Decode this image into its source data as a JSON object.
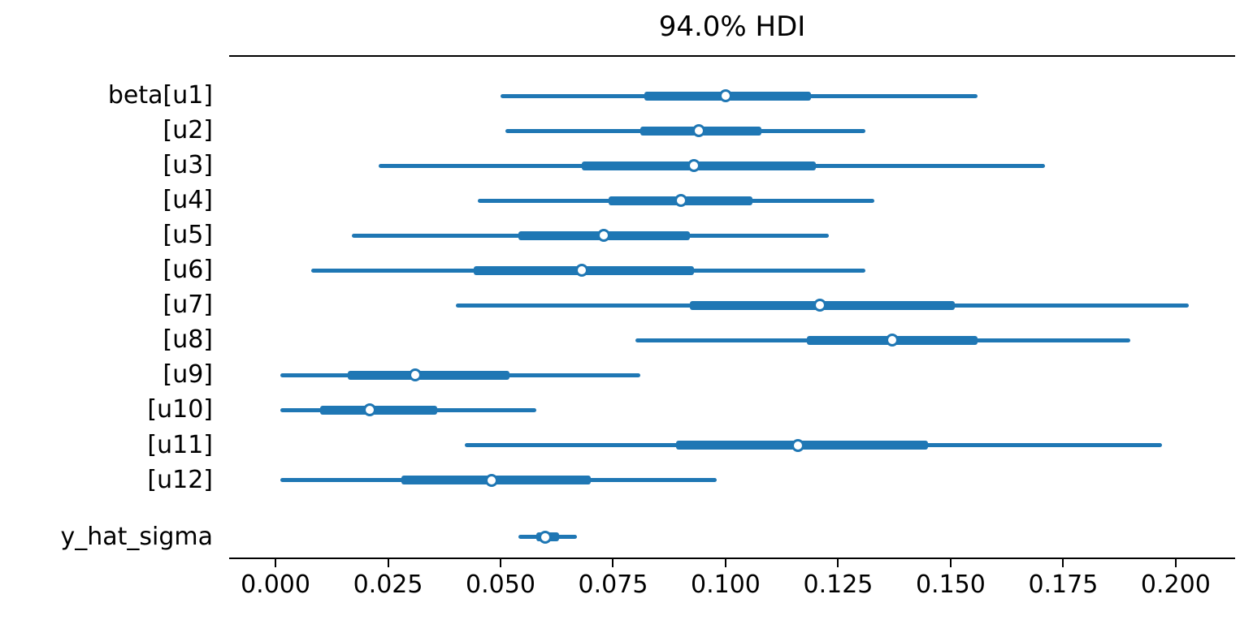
{
  "accent_color": "#1f77b4",
  "axis_color": "#000000",
  "chart_data": {
    "type": "forest",
    "title": "94.0% HDI",
    "hdi_probability": "94.0%",
    "xlim": [
      -0.0103,
      0.2132
    ],
    "x_ticks": [
      0.0,
      0.025,
      0.05,
      0.075,
      0.1,
      0.125,
      0.15,
      0.175,
      0.2
    ],
    "x_tick_labels": [
      "0.000",
      "0.025",
      "0.050",
      "0.075",
      "0.100",
      "0.125",
      "0.150",
      "0.175",
      "0.200"
    ],
    "grid": false,
    "legend": false,
    "rows": [
      {
        "label": "beta[u1]",
        "hdi": [
          0.05,
          0.156
        ],
        "quartile": [
          0.082,
          0.119
        ],
        "median": 0.1,
        "gap_before": false
      },
      {
        "label": "[u2]",
        "hdi": [
          0.051,
          0.131
        ],
        "quartile": [
          0.081,
          0.108
        ],
        "median": 0.094,
        "gap_before": false
      },
      {
        "label": "[u3]",
        "hdi": [
          0.023,
          0.171
        ],
        "quartile": [
          0.068,
          0.12
        ],
        "median": 0.093,
        "gap_before": false
      },
      {
        "label": "[u4]",
        "hdi": [
          0.045,
          0.133
        ],
        "quartile": [
          0.074,
          0.106
        ],
        "median": 0.09,
        "gap_before": false
      },
      {
        "label": "[u5]",
        "hdi": [
          0.017,
          0.123
        ],
        "quartile": [
          0.054,
          0.092
        ],
        "median": 0.073,
        "gap_before": false
      },
      {
        "label": "[u6]",
        "hdi": [
          0.008,
          0.131
        ],
        "quartile": [
          0.044,
          0.093
        ],
        "median": 0.068,
        "gap_before": false
      },
      {
        "label": "[u7]",
        "hdi": [
          0.04,
          0.203
        ],
        "quartile": [
          0.092,
          0.151
        ],
        "median": 0.121,
        "gap_before": false
      },
      {
        "label": "[u8]",
        "hdi": [
          0.08,
          0.19
        ],
        "quartile": [
          0.118,
          0.156
        ],
        "median": 0.137,
        "gap_before": false
      },
      {
        "label": "[u9]",
        "hdi": [
          0.001,
          0.081
        ],
        "quartile": [
          0.016,
          0.052
        ],
        "median": 0.031,
        "gap_before": false
      },
      {
        "label": "[u10]",
        "hdi": [
          0.001,
          0.058
        ],
        "quartile": [
          0.01,
          0.036
        ],
        "median": 0.021,
        "gap_before": false
      },
      {
        "label": "[u11]",
        "hdi": [
          0.042,
          0.197
        ],
        "quartile": [
          0.089,
          0.145
        ],
        "median": 0.116,
        "gap_before": false
      },
      {
        "label": "[u12]",
        "hdi": [
          0.001,
          0.098
        ],
        "quartile": [
          0.028,
          0.07
        ],
        "median": 0.048,
        "gap_before": false
      },
      {
        "label": "y_hat_sigma",
        "hdi": [
          0.054,
          0.067
        ],
        "quartile": [
          0.058,
          0.063
        ],
        "median": 0.06,
        "gap_before": true
      }
    ]
  }
}
